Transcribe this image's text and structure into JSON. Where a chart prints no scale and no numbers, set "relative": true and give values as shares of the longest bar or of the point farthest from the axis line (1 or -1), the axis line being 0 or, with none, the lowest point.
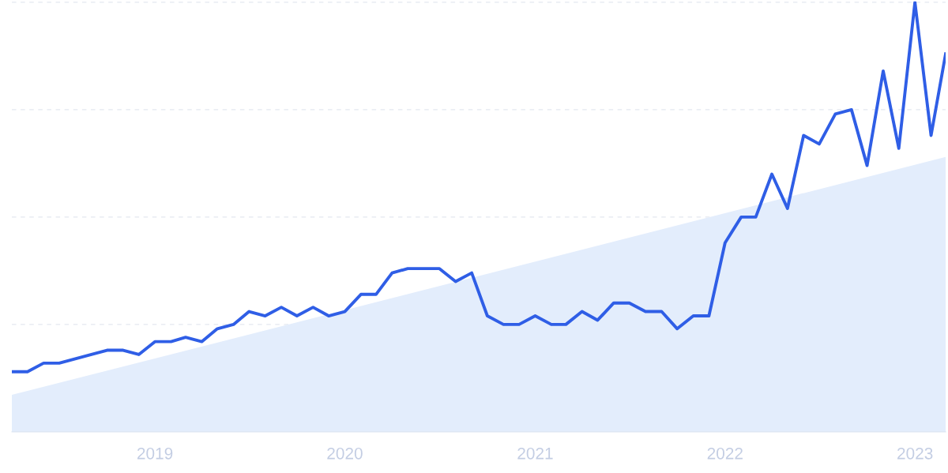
{
  "chart_data": {
    "type": "line",
    "relative": true,
    "grid": "y",
    "xlim": [
      "2018-04",
      "2023-03"
    ],
    "xticks": [
      "2019",
      "2020",
      "2021",
      "2022",
      "2023"
    ],
    "x": [
      "2018-04",
      "2018-05",
      "2018-06",
      "2018-07",
      "2018-08",
      "2018-09",
      "2018-10",
      "2018-11",
      "2018-12",
      "2019-01",
      "2019-02",
      "2019-03",
      "2019-04",
      "2019-05",
      "2019-06",
      "2019-07",
      "2019-08",
      "2019-09",
      "2019-10",
      "2019-11",
      "2019-12",
      "2020-01",
      "2020-02",
      "2020-03",
      "2020-04",
      "2020-05",
      "2020-06",
      "2020-07",
      "2020-08",
      "2020-09",
      "2020-10",
      "2020-11",
      "2020-12",
      "2021-01",
      "2021-02",
      "2021-03",
      "2021-04",
      "2021-05",
      "2021-06",
      "2021-07",
      "2021-08",
      "2021-09",
      "2021-10",
      "2021-11",
      "2021-12",
      "2022-01",
      "2022-02",
      "2022-03",
      "2022-04",
      "2022-05",
      "2022-06",
      "2022-07",
      "2022-08",
      "2022-09",
      "2022-10",
      "2022-11",
      "2022-12",
      "2023-01",
      "2023-02",
      "2023-03"
    ],
    "series": [
      {
        "color": "#2f5ee6",
        "values": [
          0.14,
          0.14,
          0.16,
          0.16,
          0.17,
          0.18,
          0.19,
          0.19,
          0.18,
          0.21,
          0.21,
          0.22,
          0.21,
          0.24,
          0.25,
          0.28,
          0.27,
          0.29,
          0.27,
          0.29,
          0.27,
          0.28,
          0.32,
          0.32,
          0.37,
          0.38,
          0.38,
          0.38,
          0.35,
          0.37,
          0.27,
          0.25,
          0.25,
          0.27,
          0.25,
          0.25,
          0.28,
          0.26,
          0.3,
          0.3,
          0.28,
          0.28,
          0.24,
          0.27,
          0.27,
          0.44,
          0.5,
          0.5,
          0.6,
          0.52,
          0.69,
          0.67,
          0.74,
          0.75,
          0.62,
          0.84,
          0.66,
          1.0,
          0.69,
          0.88
        ]
      },
      {
        "type": "area",
        "color": "#e3edfc",
        "x": [
          "2018-04",
          "2023-03"
        ],
        "values": [
          0.086,
          0.64
        ]
      }
    ]
  }
}
